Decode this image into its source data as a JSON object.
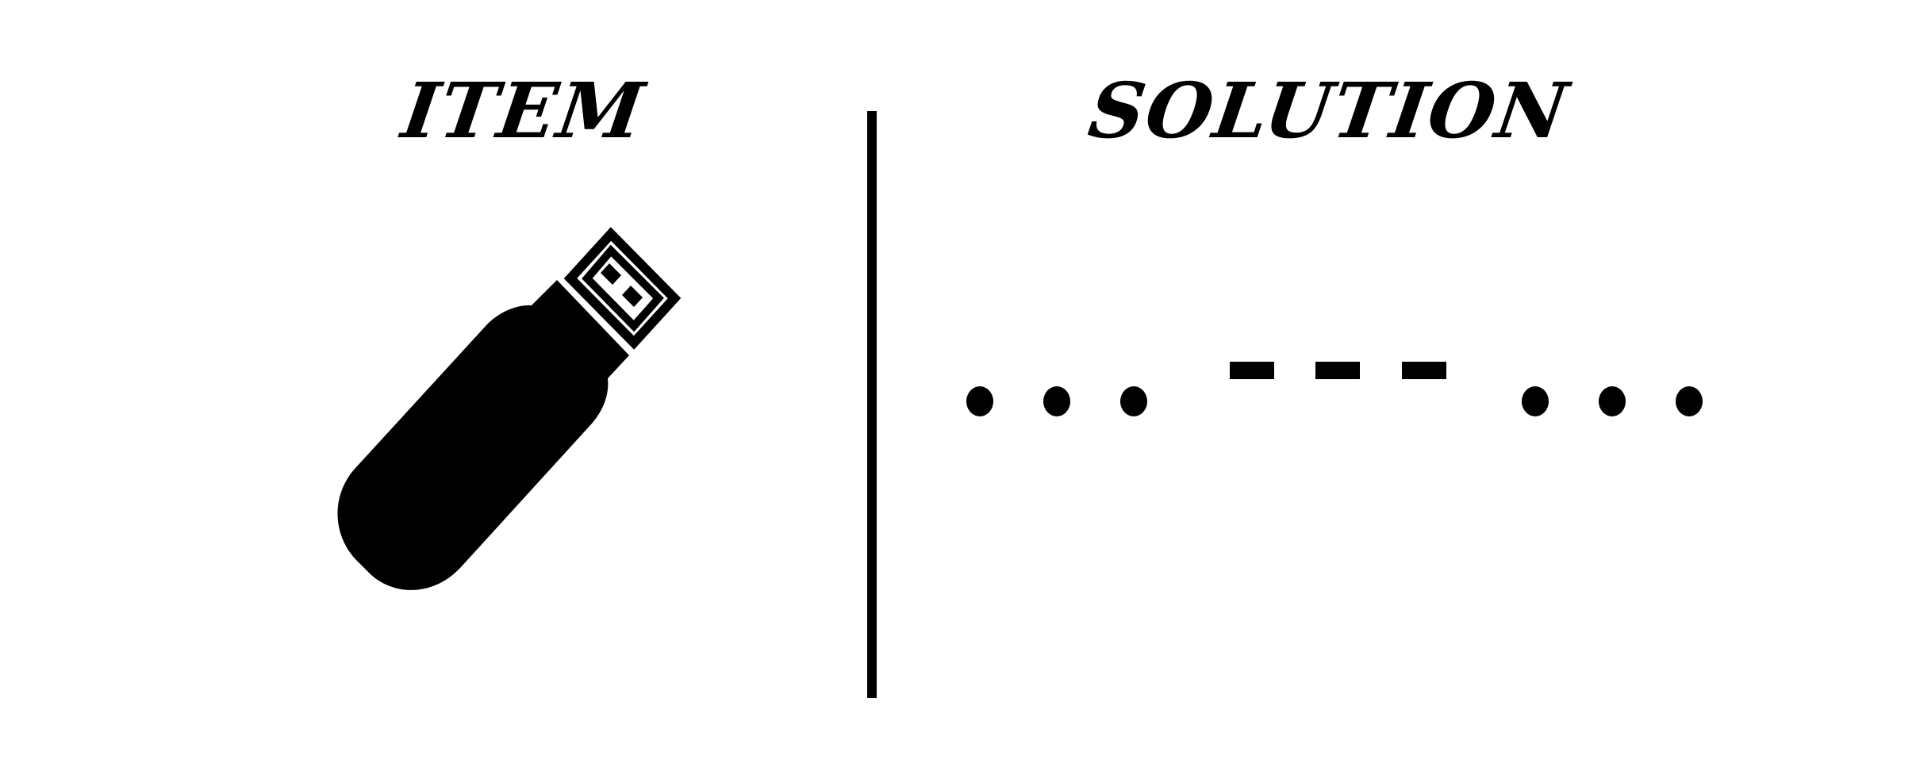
{
  "item_heading": "ITEM",
  "solution_heading": "SOLUTION",
  "item_icon": "usb-flash-drive-icon",
  "solution_morse": "... --- ...",
  "colors": {
    "foreground": "#000000",
    "background": "#ffffff"
  }
}
